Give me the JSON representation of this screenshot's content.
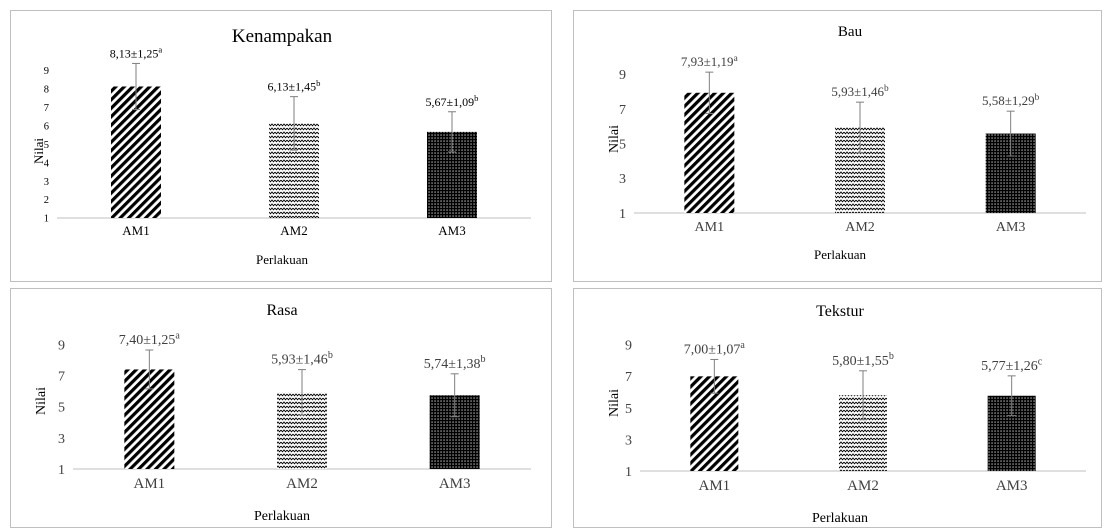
{
  "chart_data": [
    {
      "type": "bar",
      "title": "Kenampakan",
      "xlabel": "Perlakuan",
      "ylabel": "Nilai",
      "categories": [
        "AM1",
        "AM2",
        "AM3"
      ],
      "values": [
        8.13,
        6.13,
        5.67
      ],
      "errors": [
        1.25,
        1.45,
        1.09
      ],
      "labels": [
        "8,13±1,25",
        "6,13±1,45",
        "5,67±1,09"
      ],
      "letters": [
        "a",
        "b",
        "b"
      ],
      "yticks": [
        "1",
        "2",
        "3",
        "4",
        "5",
        "6",
        "7",
        "8",
        "9"
      ],
      "ylim": [
        1,
        10
      ],
      "legend": "none",
      "grid": false
    },
    {
      "type": "bar",
      "title": "Bau",
      "xlabel": "Perlakuan",
      "ylabel": "Nilai",
      "categories": [
        "AM1",
        "AM2",
        "AM3"
      ],
      "values": [
        7.93,
        5.93,
        5.58
      ],
      "errors": [
        1.19,
        1.46,
        1.29
      ],
      "labels": [
        "7,93±1,19",
        "5,93±1,46",
        "5,58±1,29"
      ],
      "letters": [
        "a",
        "b",
        "b"
      ],
      "yticks": [
        "1",
        "3",
        "5",
        "7",
        "9"
      ],
      "ylim": [
        1,
        10.8
      ],
      "legend": "none",
      "grid": false
    },
    {
      "type": "bar",
      "title": "Rasa",
      "xlabel": "Perlakuan",
      "ylabel": "Nilai",
      "categories": [
        "AM1",
        "AM2",
        "AM3"
      ],
      "values": [
        7.4,
        5.93,
        5.74
      ],
      "errors": [
        1.25,
        1.46,
        1.38
      ],
      "labels": [
        "7,40±1,25",
        "5,93±1,46",
        "5,74±1,38"
      ],
      "letters": [
        "a",
        "b",
        "b"
      ],
      "yticks": [
        "1",
        "3",
        "5",
        "7",
        "9"
      ],
      "ylim": [
        1,
        10
      ],
      "legend": "none",
      "grid": false
    },
    {
      "type": "bar",
      "title": "Tekstur",
      "xlabel": "Perlakuan",
      "ylabel": "Nilai",
      "categories": [
        "AM1",
        "AM2",
        "AM3"
      ],
      "values": [
        7.0,
        5.8,
        5.77
      ],
      "errors": [
        1.07,
        1.55,
        1.26
      ],
      "labels": [
        "7,00±1,07",
        "5,80±1,55",
        "5,77±1,26"
      ],
      "letters": [
        "a",
        "b",
        "c"
      ],
      "yticks": [
        "1",
        "3",
        "5",
        "7",
        "9"
      ],
      "ylim": [
        1,
        10
      ],
      "legend": "none",
      "grid": false
    }
  ]
}
